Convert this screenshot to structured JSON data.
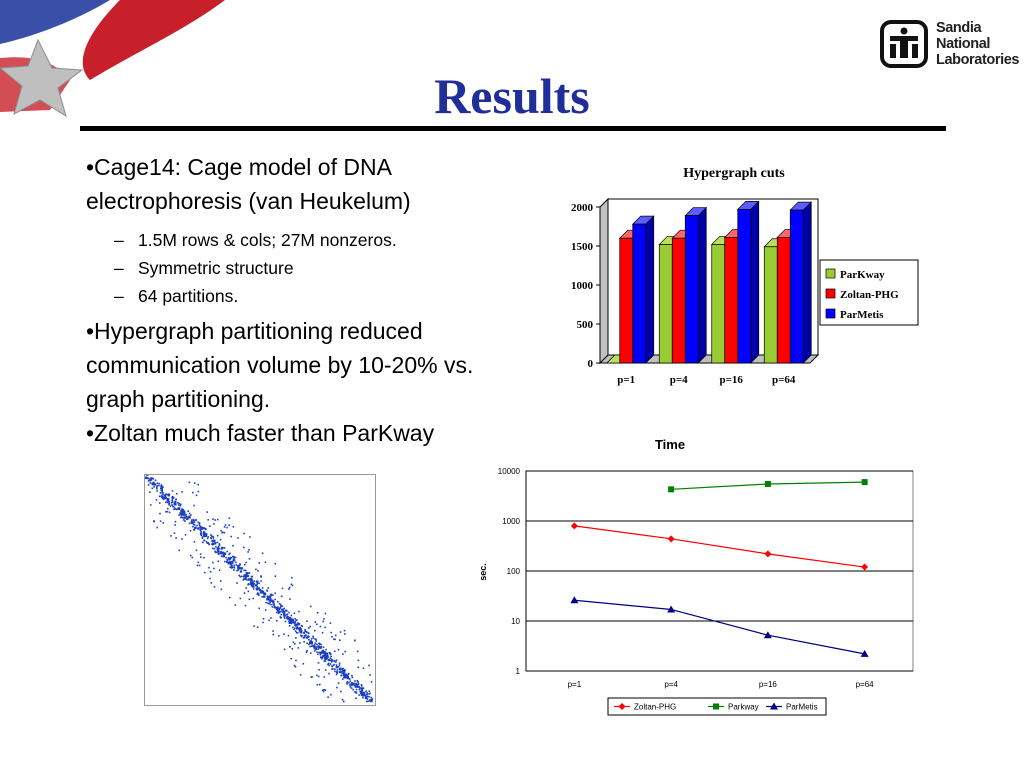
{
  "slide": {
    "title": "Results",
    "logo": {
      "lines": [
        "Sandia",
        "National",
        "Laboratories"
      ]
    },
    "bullets": [
      {
        "text": "•Cage14: Cage model of DNA electrophoresis (van Heukelum)",
        "subs": [
          "1.5M rows & cols; 27M nonzeros.",
          "Symmetric structure",
          "64 partitions."
        ]
      },
      {
        "text": "•Hypergraph partitioning reduced communication volume by 10-20% vs. graph partitioning.",
        "subs": []
      },
      {
        "text": "•Zoltan much faster than ParKway",
        "subs": []
      }
    ],
    "sub_marker": "–"
  },
  "colors": {
    "title": "#1f2e99",
    "parkway_bar": "#99cc33",
    "zoltan_bar": "#ff0000",
    "parmetis_bar": "#0000ff",
    "zoltan_line": "#ff0000",
    "parkway_line": "#008000",
    "parmetis_line": "#000080"
  },
  "chart_data": [
    {
      "type": "bar",
      "title": "Hypergraph cuts",
      "categories": [
        "p=1",
        "p=4",
        "p=16",
        "p=64"
      ],
      "series": [
        {
          "name": "ParKway",
          "values": [
            0,
            1520,
            1520,
            1490
          ],
          "color": "#99cc33"
        },
        {
          "name": "Zoltan-PHG",
          "values": [
            1600,
            1600,
            1610,
            1610
          ],
          "color": "#ff0000"
        },
        {
          "name": "ParMetis",
          "values": [
            1780,
            1890,
            1970,
            1960
          ],
          "color": "#0000ff"
        }
      ],
      "ylim": [
        0,
        2000
      ],
      "yticks": [
        "0",
        "500",
        "1000",
        "1500",
        "2000"
      ],
      "legend": "right",
      "grid": false
    },
    {
      "type": "line",
      "title": "Time",
      "ylabel": "sec.",
      "yscale": "log",
      "ylim": [
        1,
        10000
      ],
      "yticks": [
        "1",
        "10",
        "100",
        "1000",
        "10000"
      ],
      "categories": [
        "p=1",
        "p=4",
        "p=16",
        "p=64"
      ],
      "series": [
        {
          "name": "Zoltan-PHG",
          "values": [
            800,
            440,
            220,
            120
          ],
          "color": "#ff0000",
          "marker": "diamond"
        },
        {
          "name": "Parkway",
          "values": [
            null,
            4300,
            5500,
            6000
          ],
          "color": "#008000",
          "marker": "square"
        },
        {
          "name": "ParMetis",
          "values": [
            26,
            17,
            5.2,
            2.2
          ],
          "color": "#000080",
          "marker": "triangle"
        }
      ],
      "legend": "bottom",
      "grid": true
    }
  ]
}
